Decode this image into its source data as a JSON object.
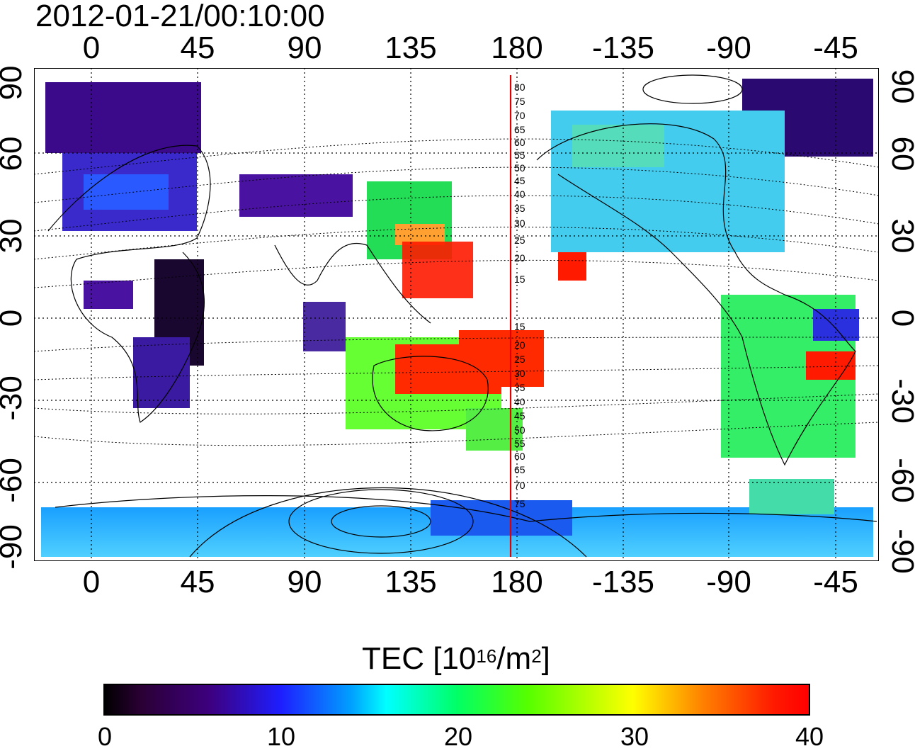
{
  "title": "2012-01-21/00:10:00",
  "x_ticks_top": [
    "0",
    "45",
    "90",
    "135",
    "180",
    "-135",
    "-90",
    "-45"
  ],
  "x_ticks_bottom": [
    "0",
    "45",
    "90",
    "135",
    "180",
    "-135",
    "-90",
    "-45"
  ],
  "y_ticks_left": [
    "90",
    "60",
    "30",
    "0",
    "-30",
    "-60",
    "-90"
  ],
  "y_ticks_right": [
    "90",
    "60",
    "30",
    "0",
    "-30",
    "-60",
    "-90"
  ],
  "contour_labels": [
    "80",
    "75",
    "70",
    "65",
    "60",
    "55",
    "50",
    "45",
    "40",
    "35",
    "30",
    "25",
    "20",
    "15",
    "15",
    "20",
    "25",
    "30",
    "35",
    "40",
    "45",
    "50",
    "55",
    "60",
    "65",
    "70",
    "75"
  ],
  "colorbar": {
    "label_prefix": "TEC  [10",
    "label_sup1": "16",
    "label_mid": "/m",
    "label_sup2": "2",
    "label_suffix": "]",
    "ticks": [
      "0",
      "10",
      "20",
      "30",
      "40"
    ],
    "range": [
      0,
      40
    ]
  },
  "colors": {
    "marker_line": "#e00000",
    "grid": "#000000"
  },
  "chart_data": {
    "type": "heatmap",
    "title": "2012-01-21/00:10:00",
    "xlabel": "",
    "ylabel": "",
    "x_axis_longitude_ticks": [
      0,
      45,
      90,
      135,
      180,
      -135,
      -90,
      -45
    ],
    "y_axis_latitude_ticks": [
      90,
      60,
      30,
      0,
      -30,
      -60,
      -90
    ],
    "value_range": [
      0,
      40
    ],
    "colorbar_label": "TEC [10^16/m^2]",
    "marker_longitude": 180,
    "grid": true
  }
}
